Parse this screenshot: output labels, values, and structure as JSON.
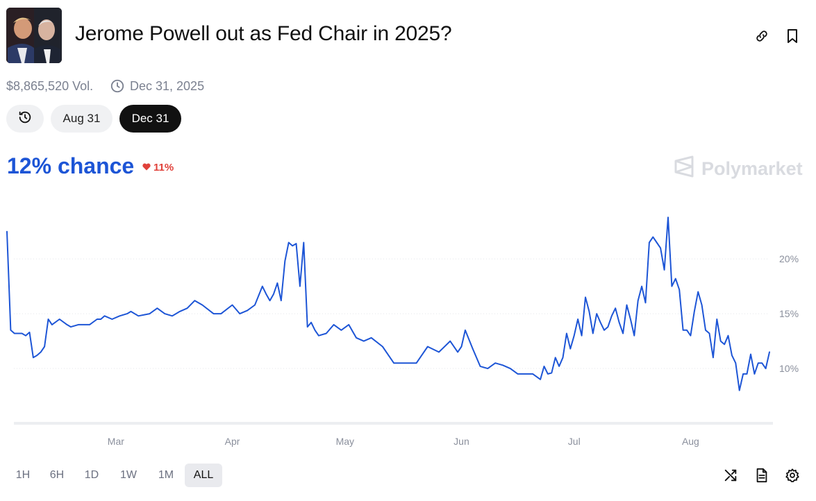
{
  "header": {
    "title": "Jerome Powell out as Fed Chair in 2025?",
    "icons": [
      "link-icon",
      "bookmark-icon"
    ]
  },
  "meta": {
    "volume": "$8,865,520 Vol.",
    "end_date": "Dec 31, 2025"
  },
  "date_pills": {
    "history_icon": "history-icon",
    "items": [
      "Aug 31",
      "Dec 31"
    ],
    "selected": "Dec 31"
  },
  "odds": {
    "chance_label": "12% chance",
    "delta_label": "11%",
    "delta_direction": "down",
    "brand": "Polymarket"
  },
  "colors": {
    "accent": "#1d55d6",
    "negative": "#e0413a",
    "dark_pill": "#111111"
  },
  "range_buttons": {
    "items": [
      "1H",
      "6H",
      "1D",
      "1W",
      "1M",
      "ALL"
    ],
    "active": "ALL"
  },
  "toolbar": {
    "icons": [
      "shuffle-icon",
      "document-icon",
      "gear-icon"
    ]
  },
  "chart_data": {
    "type": "line",
    "x_axis_type": "date",
    "x_tick_labels": [
      "Mar",
      "Apr",
      "May",
      "Jun",
      "Jul",
      "Aug"
    ],
    "x_ticks": [
      "2025-03-01",
      "2025-04-01",
      "2025-05-01",
      "2025-06-01",
      "2025-07-01",
      "2025-08-01"
    ],
    "y_tick_labels": [
      "10%",
      "15%",
      "20%"
    ],
    "y_ticks": [
      10,
      15,
      20
    ],
    "ylim": [
      5,
      24
    ],
    "xlim": [
      "2025-01-31",
      "2025-08-22"
    ],
    "grid": "horizontal-dotted",
    "y_axis_side": "right",
    "series": [
      {
        "color": "#1d55d6",
        "x": [
          "2025-01-31",
          "2025-02-01",
          "2025-02-02",
          "2025-02-04",
          "2025-02-05",
          "2025-02-06",
          "2025-02-07",
          "2025-02-08",
          "2025-02-09",
          "2025-02-10",
          "2025-02-11",
          "2025-02-12",
          "2025-02-14",
          "2025-02-16",
          "2025-02-17",
          "2025-02-19",
          "2025-02-22",
          "2025-02-24",
          "2025-02-25",
          "2025-02-26",
          "2025-02-28",
          "2025-03-02",
          "2025-03-04",
          "2025-03-05",
          "2025-03-07",
          "2025-03-10",
          "2025-03-12",
          "2025-03-14",
          "2025-03-16",
          "2025-03-18",
          "2025-03-20",
          "2025-03-22",
          "2025-03-24",
          "2025-03-27",
          "2025-03-29",
          "2025-04-01",
          "2025-04-03",
          "2025-04-05",
          "2025-04-07",
          "2025-04-09",
          "2025-04-10",
          "2025-04-11",
          "2025-04-12",
          "2025-04-13",
          "2025-04-14",
          "2025-04-15",
          "2025-04-16",
          "2025-04-17",
          "2025-04-18",
          "2025-04-19",
          "2025-04-20",
          "2025-04-21",
          "2025-04-22",
          "2025-04-23",
          "2025-04-24",
          "2025-04-26",
          "2025-04-28",
          "2025-04-30",
          "2025-05-02",
          "2025-05-04",
          "2025-05-06",
          "2025-05-08",
          "2025-05-11",
          "2025-05-14",
          "2025-05-17",
          "2025-05-20",
          "2025-05-23",
          "2025-05-26",
          "2025-05-29",
          "2025-05-31",
          "2025-06-01",
          "2025-06-02",
          "2025-06-04",
          "2025-06-06",
          "2025-06-08",
          "2025-06-10",
          "2025-06-12",
          "2025-06-14",
          "2025-06-16",
          "2025-06-18",
          "2025-06-20",
          "2025-06-22",
          "2025-06-23",
          "2025-06-24",
          "2025-06-25",
          "2025-06-26",
          "2025-06-27",
          "2025-06-28",
          "2025-06-29",
          "2025-06-30",
          "2025-07-01",
          "2025-07-02",
          "2025-07-03",
          "2025-07-04",
          "2025-07-05",
          "2025-07-06",
          "2025-07-07",
          "2025-07-08",
          "2025-07-09",
          "2025-07-10",
          "2025-07-11",
          "2025-07-12",
          "2025-07-13",
          "2025-07-14",
          "2025-07-15",
          "2025-07-16",
          "2025-07-17",
          "2025-07-18",
          "2025-07-19",
          "2025-07-20",
          "2025-07-21",
          "2025-07-22",
          "2025-07-23",
          "2025-07-24",
          "2025-07-25",
          "2025-07-26",
          "2025-07-27",
          "2025-07-28",
          "2025-07-29",
          "2025-07-30",
          "2025-07-31",
          "2025-08-01",
          "2025-08-02",
          "2025-08-03",
          "2025-08-04",
          "2025-08-05",
          "2025-08-06",
          "2025-08-07",
          "2025-08-08",
          "2025-08-09",
          "2025-08-10",
          "2025-08-11",
          "2025-08-12",
          "2025-08-13",
          "2025-08-14",
          "2025-08-15",
          "2025-08-16",
          "2025-08-17",
          "2025-08-18",
          "2025-08-19",
          "2025-08-20",
          "2025-08-21",
          "2025-08-22"
        ],
        "y": [
          22.5,
          13.5,
          13.2,
          13.2,
          13.0,
          13.3,
          11.0,
          11.2,
          11.5,
          12.0,
          14.5,
          14.0,
          14.5,
          14.0,
          13.8,
          14.0,
          14.0,
          14.5,
          14.5,
          14.8,
          14.5,
          14.8,
          15.0,
          15.2,
          14.8,
          15.0,
          15.5,
          15.0,
          14.8,
          15.2,
          15.5,
          16.2,
          15.8,
          15.0,
          15.0,
          15.8,
          15.0,
          15.3,
          15.8,
          17.5,
          16.8,
          16.2,
          16.8,
          17.8,
          16.2,
          19.8,
          21.5,
          21.2,
          21.4,
          17.5,
          21.5,
          13.8,
          14.2,
          13.5,
          13.0,
          13.2,
          14.0,
          13.5,
          14.0,
          12.8,
          12.5,
          12.8,
          12.0,
          10.5,
          10.5,
          10.5,
          12.0,
          11.5,
          12.5,
          11.5,
          12.0,
          13.5,
          11.8,
          10.2,
          10.0,
          10.5,
          10.3,
          10.0,
          9.5,
          9.5,
          9.5,
          9.0,
          10.2,
          9.5,
          9.6,
          11.0,
          10.2,
          11.0,
          13.2,
          11.8,
          13.0,
          14.5,
          13.0,
          16.5,
          15.2,
          13.2,
          15.0,
          14.2,
          13.5,
          13.8,
          14.8,
          15.5,
          14.2,
          13.2,
          15.8,
          14.5,
          13.0,
          16.2,
          17.5,
          16.0,
          21.5,
          22.0,
          21.5,
          21.0,
          19.0,
          23.8,
          17.5,
          18.2,
          17.2,
          13.5,
          13.5,
          13.0,
          15.2,
          17.0,
          15.8,
          13.5,
          13.2,
          11.0,
          14.5,
          12.5,
          12.2,
          13.0,
          11.2,
          10.5,
          8.0,
          9.5,
          9.5,
          11.3,
          9.5,
          10.5,
          10.5,
          10.0,
          11.5
        ]
      }
    ]
  }
}
